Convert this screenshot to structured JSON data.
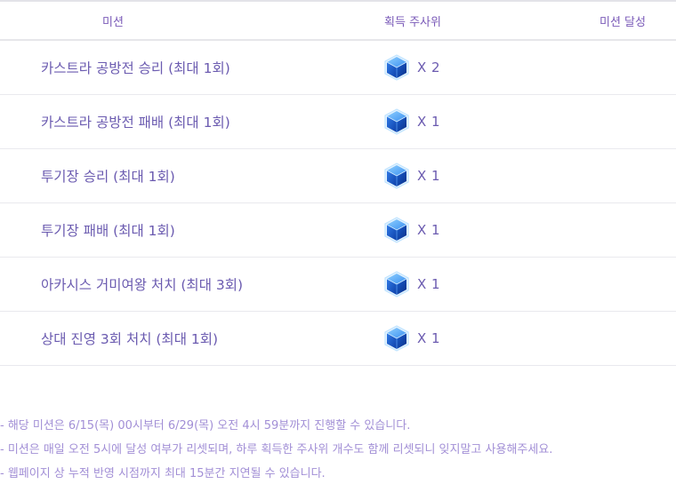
{
  "table": {
    "headers": {
      "mission": "미션",
      "dice": "획득 주사위",
      "achieve": "미션 달성"
    },
    "rows": [
      {
        "mission": "카스트라 공방전 승리 (최대 1회)",
        "dice_icon": "blue-dice-icon",
        "dice_count": "X 2",
        "achieve": ""
      },
      {
        "mission": "카스트라 공방전 패배 (최대 1회)",
        "dice_icon": "blue-dice-icon",
        "dice_count": "X 1",
        "achieve": ""
      },
      {
        "mission": "투기장 승리 (최대 1회)",
        "dice_icon": "blue-dice-icon",
        "dice_count": "X 1",
        "achieve": ""
      },
      {
        "mission": "투기장 패배 (최대 1회)",
        "dice_icon": "blue-dice-icon",
        "dice_count": "X 1",
        "achieve": ""
      },
      {
        "mission": "아카시스 거미여왕 처치 (최대 3회)",
        "dice_icon": "blue-dice-icon",
        "dice_count": "X 1",
        "achieve": ""
      },
      {
        "mission": "상대 진영 3회 처치 (최대 1회)",
        "dice_icon": "blue-dice-icon",
        "dice_count": "X 1",
        "achieve": ""
      }
    ]
  },
  "notes": [
    "- 해당 미션은 6/15(목) 00시부터 6/29(목) 오전 4시 59분까지 진행할 수 있습니다.",
    "- 미션은 매일 오전 5시에 달성 여부가 리셋되며, 하루 획득한 주사위 개수도 함께 리셋되니 잊지말고 사용해주세요.",
    "- 웹페이지 상 누적 반영 시점까지 최대 15분간 지연될 수 있습니다."
  ],
  "colors": {
    "header_text": "#7a5ab8",
    "row_text": "#6b5bb0",
    "note_text": "#a28fd6",
    "dice_blue": "#1f6fe0"
  }
}
